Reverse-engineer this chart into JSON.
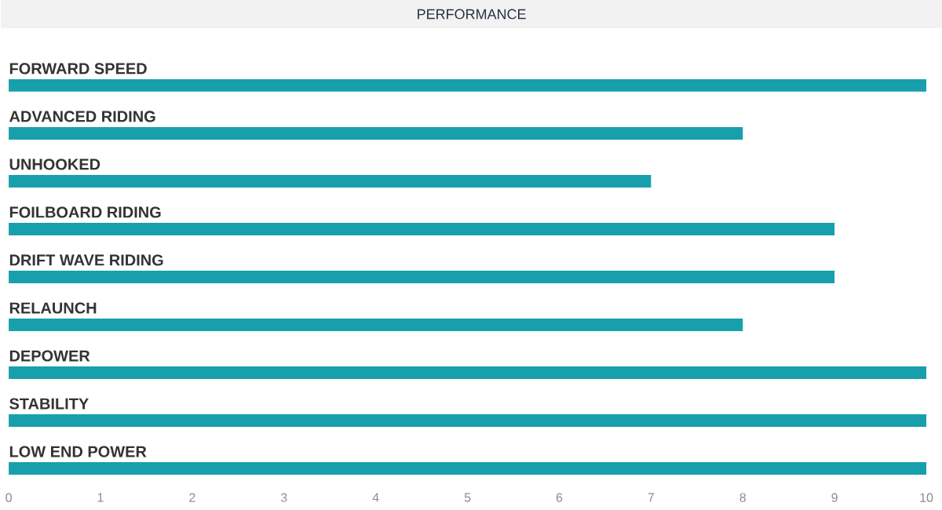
{
  "chart_data": {
    "type": "bar",
    "orientation": "horizontal",
    "title": "PERFORMANCE",
    "categories": [
      "FORWARD SPEED",
      "ADVANCED RIDING",
      "UNHOOKED",
      "FOILBOARD RIDING",
      "DRIFT WAVE RIDING",
      "RELAUNCH",
      "DEPOWER",
      "STABILITY",
      "LOW END POWER"
    ],
    "values": [
      10,
      8,
      7,
      9,
      9,
      8,
      10,
      10,
      10
    ],
    "color": "#17a0ab",
    "xlim": [
      0,
      10
    ],
    "xticks": [
      0,
      1,
      2,
      3,
      4,
      5,
      6,
      7,
      8,
      9,
      10
    ]
  }
}
